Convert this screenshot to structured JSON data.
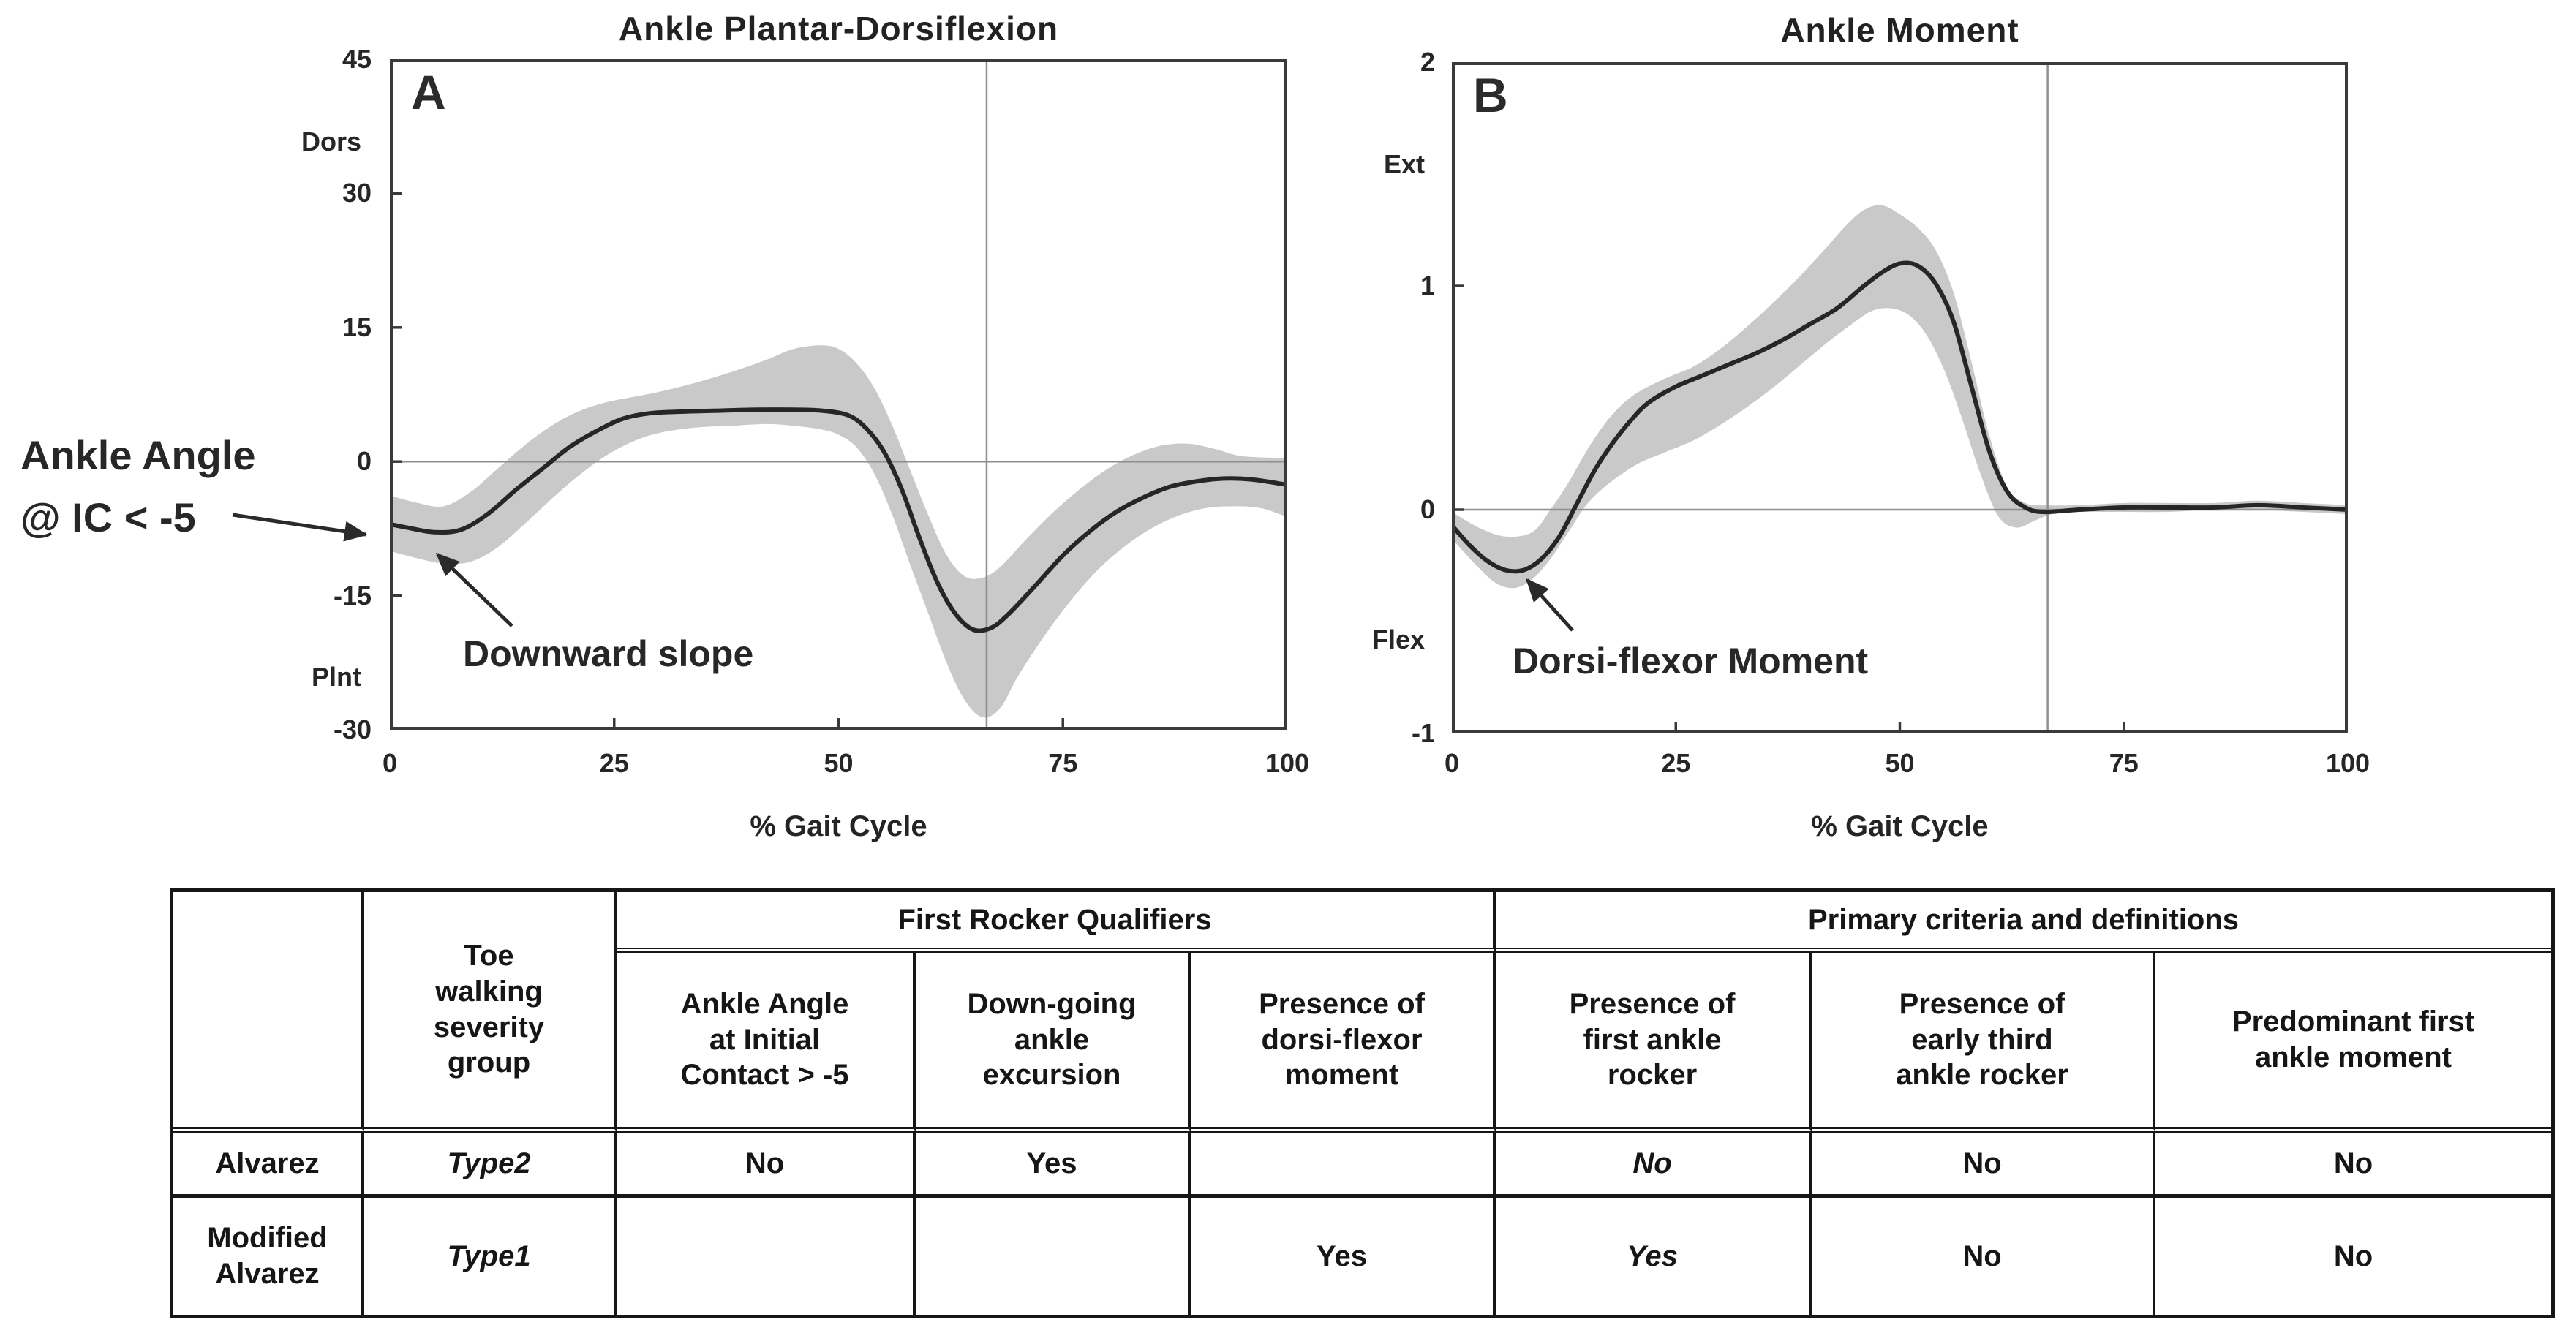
{
  "colors": {
    "line": "#262626",
    "band": "#c9c9c9",
    "axis": "#3a3a3a",
    "grid": "#8f8f8f",
    "text": "#1f1f1f"
  },
  "chart_data": [
    {
      "id": "ankle-plantar-dorsiflexion",
      "type": "line",
      "panel_label": "A",
      "title": "Ankle Plantar-Dorsiflexion",
      "xlabel": "% Gait Cycle",
      "xlim": [
        0,
        100
      ],
      "ylim": [
        -30,
        45
      ],
      "xticks": [
        0,
        25,
        50,
        75,
        100
      ],
      "yticks": [
        45,
        30,
        15,
        0,
        -15,
        -30
      ],
      "y_axis_upper_label": "Dors",
      "y_axis_lower_label": "Plnt",
      "event_line_x": 66.5,
      "legend": "none",
      "series": [
        {
          "name": "mean",
          "points": [
            [
              0,
              -7
            ],
            [
              2,
              -7.4
            ],
            [
              5,
              -7.9
            ],
            [
              8,
              -7.6
            ],
            [
              11,
              -5.8
            ],
            [
              14,
              -3.2
            ],
            [
              17,
              -0.8
            ],
            [
              20,
              1.6
            ],
            [
              23,
              3.4
            ],
            [
              26,
              4.8
            ],
            [
              29,
              5.4
            ],
            [
              33,
              5.6
            ],
            [
              37,
              5.7
            ],
            [
              41,
              5.8
            ],
            [
              45,
              5.8
            ],
            [
              48,
              5.7
            ],
            [
              51,
              5.2
            ],
            [
              53,
              3.8
            ],
            [
              55,
              1.2
            ],
            [
              57,
              -3
            ],
            [
              59,
              -8.5
            ],
            [
              61,
              -13.5
            ],
            [
              63,
              -17
            ],
            [
              65,
              -18.8
            ],
            [
              67,
              -18.6
            ],
            [
              69,
              -17
            ],
            [
              72,
              -13.8
            ],
            [
              75,
              -10.5
            ],
            [
              78,
              -7.8
            ],
            [
              81,
              -5.6
            ],
            [
              84,
              -4
            ],
            [
              87,
              -2.8
            ],
            [
              90,
              -2.2
            ],
            [
              93,
              -1.9
            ],
            [
              96,
              -2
            ],
            [
              100,
              -2.6
            ]
          ]
        },
        {
          "name": "band_upper",
          "points": [
            [
              0,
              -3.8
            ],
            [
              3,
              -4.6
            ],
            [
              6,
              -5
            ],
            [
              9,
              -3.4
            ],
            [
              12,
              -0.8
            ],
            [
              15,
              1.8
            ],
            [
              18,
              4
            ],
            [
              21,
              5.6
            ],
            [
              24,
              6.6
            ],
            [
              27,
              7.2
            ],
            [
              30,
              7.8
            ],
            [
              34,
              8.8
            ],
            [
              38,
              10
            ],
            [
              42,
              11.4
            ],
            [
              45,
              12.6
            ],
            [
              48,
              13
            ],
            [
              50,
              12.6
            ],
            [
              52,
              11
            ],
            [
              54,
              8.2
            ],
            [
              56,
              4
            ],
            [
              58,
              -1
            ],
            [
              60,
              -6
            ],
            [
              62,
              -10.4
            ],
            [
              64,
              -12.8
            ],
            [
              66,
              -13
            ],
            [
              68,
              -11.8
            ],
            [
              71,
              -8.6
            ],
            [
              74,
              -5.6
            ],
            [
              77,
              -3
            ],
            [
              80,
              -0.8
            ],
            [
              83,
              0.8
            ],
            [
              86,
              1.8
            ],
            [
              89,
              2
            ],
            [
              92,
              1.4
            ],
            [
              95,
              0.6
            ],
            [
              100,
              0.4
            ]
          ]
        },
        {
          "name": "band_lower",
          "points": [
            [
              0,
              -10
            ],
            [
              3,
              -10.8
            ],
            [
              6,
              -11.4
            ],
            [
              9,
              -11.2
            ],
            [
              12,
              -9.6
            ],
            [
              15,
              -7
            ],
            [
              18,
              -4.2
            ],
            [
              21,
              -1.6
            ],
            [
              24,
              0.6
            ],
            [
              27,
              2.2
            ],
            [
              30,
              3.2
            ],
            [
              34,
              3.8
            ],
            [
              38,
              4
            ],
            [
              42,
              4.2
            ],
            [
              45,
              4
            ],
            [
              48,
              3.6
            ],
            [
              50,
              3
            ],
            [
              52,
              1.6
            ],
            [
              54,
              -1.4
            ],
            [
              56,
              -6
            ],
            [
              58,
              -11.6
            ],
            [
              60,
              -17
            ],
            [
              62,
              -22.4
            ],
            [
              64,
              -26.6
            ],
            [
              66,
              -28.6
            ],
            [
              68,
              -27.6
            ],
            [
              70,
              -24
            ],
            [
              73,
              -19.4
            ],
            [
              76,
              -15.4
            ],
            [
              79,
              -12
            ],
            [
              82,
              -9.4
            ],
            [
              85,
              -7.4
            ],
            [
              88,
              -6
            ],
            [
              91,
              -5.2
            ],
            [
              94,
              -5
            ],
            [
              97,
              -5.2
            ],
            [
              100,
              -6.2
            ]
          ]
        }
      ],
      "annotations": [
        {
          "text": "Ankle Angle\n@ IC < -5"
        },
        {
          "text": "Downward slope"
        }
      ]
    },
    {
      "id": "ankle-moment",
      "type": "line",
      "panel_label": "B",
      "title": "Ankle Moment",
      "xlabel": "% Gait Cycle",
      "xlim": [
        0,
        100
      ],
      "ylim": [
        -1,
        2
      ],
      "xticks": [
        0,
        25,
        50,
        75,
        100
      ],
      "yticks": [
        2,
        1,
        0,
        -1
      ],
      "y_axis_upper_label": "Ext",
      "y_axis_lower_label": "Flex",
      "event_line_x": 66.5,
      "legend": "none",
      "series": [
        {
          "name": "mean",
          "points": [
            [
              0,
              -0.07
            ],
            [
              2,
              -0.16
            ],
            [
              4,
              -0.23
            ],
            [
              6,
              -0.27
            ],
            [
              8,
              -0.27
            ],
            [
              10,
              -0.22
            ],
            [
              12,
              -0.12
            ],
            [
              14,
              0.03
            ],
            [
              16,
              0.18
            ],
            [
              18,
              0.3
            ],
            [
              20,
              0.4
            ],
            [
              22,
              0.48
            ],
            [
              25,
              0.55
            ],
            [
              28,
              0.6
            ],
            [
              31,
              0.65
            ],
            [
              34,
              0.7
            ],
            [
              37,
              0.76
            ],
            [
              40,
              0.83
            ],
            [
              43,
              0.9
            ],
            [
              46,
              1
            ],
            [
              48,
              1.06
            ],
            [
              50,
              1.1
            ],
            [
              52,
              1.09
            ],
            [
              54,
              1.01
            ],
            [
              56,
              0.84
            ],
            [
              58,
              0.55
            ],
            [
              60,
              0.26
            ],
            [
              62,
              0.08
            ],
            [
              64,
              0.01
            ],
            [
              66,
              -0.01
            ],
            [
              70,
              0
            ],
            [
              75,
              0.01
            ],
            [
              80,
              0.01
            ],
            [
              85,
              0.01
            ],
            [
              90,
              0.02
            ],
            [
              95,
              0.01
            ],
            [
              100,
              0
            ]
          ]
        },
        {
          "name": "band_upper",
          "points": [
            [
              0,
              -0.01
            ],
            [
              3,
              -0.08
            ],
            [
              6,
              -0.12
            ],
            [
              9,
              -0.1
            ],
            [
              11,
              0
            ],
            [
              13,
              0.12
            ],
            [
              15,
              0.26
            ],
            [
              17,
              0.38
            ],
            [
              19,
              0.47
            ],
            [
              21,
              0.53
            ],
            [
              24,
              0.59
            ],
            [
              27,
              0.64
            ],
            [
              30,
              0.72
            ],
            [
              33,
              0.82
            ],
            [
              36,
              0.93
            ],
            [
              39,
              1.05
            ],
            [
              42,
              1.18
            ],
            [
              44,
              1.27
            ],
            [
              46,
              1.34
            ],
            [
              48,
              1.36
            ],
            [
              50,
              1.32
            ],
            [
              52,
              1.26
            ],
            [
              54,
              1.16
            ],
            [
              56,
              0.97
            ],
            [
              58,
              0.66
            ],
            [
              60,
              0.33
            ],
            [
              62,
              0.1
            ],
            [
              64,
              0.03
            ],
            [
              66,
              0.02
            ],
            [
              70,
              0.02
            ],
            [
              75,
              0.03
            ],
            [
              80,
              0.03
            ],
            [
              85,
              0.03
            ],
            [
              90,
              0.04
            ],
            [
              95,
              0.03
            ],
            [
              100,
              0.02
            ]
          ]
        },
        {
          "name": "band_lower",
          "points": [
            [
              0,
              -0.13
            ],
            [
              3,
              -0.26
            ],
            [
              5,
              -0.33
            ],
            [
              7,
              -0.35
            ],
            [
              9,
              -0.31
            ],
            [
              11,
              -0.22
            ],
            [
              13,
              -0.1
            ],
            [
              15,
              0.02
            ],
            [
              17,
              0.1
            ],
            [
              19,
              0.16
            ],
            [
              21,
              0.21
            ],
            [
              24,
              0.26
            ],
            [
              27,
              0.31
            ],
            [
              30,
              0.38
            ],
            [
              33,
              0.46
            ],
            [
              36,
              0.55
            ],
            [
              39,
              0.65
            ],
            [
              42,
              0.75
            ],
            [
              45,
              0.84
            ],
            [
              47,
              0.89
            ],
            [
              49,
              0.9
            ],
            [
              51,
              0.87
            ],
            [
              53,
              0.78
            ],
            [
              55,
              0.62
            ],
            [
              57,
              0.4
            ],
            [
              59,
              0.16
            ],
            [
              61,
              -0.03
            ],
            [
              63,
              -0.08
            ],
            [
              65,
              -0.05
            ],
            [
              67,
              -0.02
            ],
            [
              70,
              -0.01
            ],
            [
              75,
              -0.01
            ],
            [
              80,
              -0.01
            ],
            [
              85,
              0
            ],
            [
              90,
              0
            ],
            [
              95,
              -0.01
            ],
            [
              100,
              -0.02
            ]
          ]
        }
      ],
      "annotations": [
        {
          "text": "Dorsi-flexor Moment"
        }
      ]
    }
  ],
  "table": {
    "corner_label": "",
    "severity_header": "Toe\nwalking\nseverity\ngroup",
    "group_headers": [
      {
        "label": "First Rocker Qualifiers",
        "span": 3
      },
      {
        "label": "Primary criteria and definitions",
        "span": 3
      }
    ],
    "columns": [
      "Ankle Angle\nat Initial\nContact > -5",
      "Down-going\nankle\nexcursion",
      "Presence of\ndorsi-flexor\nmoment",
      "Presence of\nfirst ankle\nrocker",
      "Presence of\nearly third\nankle rocker",
      "Predominant first\nankle moment"
    ],
    "rows": [
      {
        "label": "Alvarez",
        "severity": "Type2",
        "severity_em": true,
        "values": [
          "No",
          "Yes",
          "",
          "No",
          "No",
          "No"
        ],
        "values_em": [
          false,
          false,
          false,
          true,
          false,
          false
        ]
      },
      {
        "label": "Modified\nAlvarez",
        "severity": "Type1",
        "severity_em": true,
        "values": [
          "",
          "",
          "Yes",
          "Yes",
          "No",
          "No"
        ],
        "values_em": [
          false,
          false,
          false,
          true,
          false,
          false
        ]
      }
    ]
  }
}
